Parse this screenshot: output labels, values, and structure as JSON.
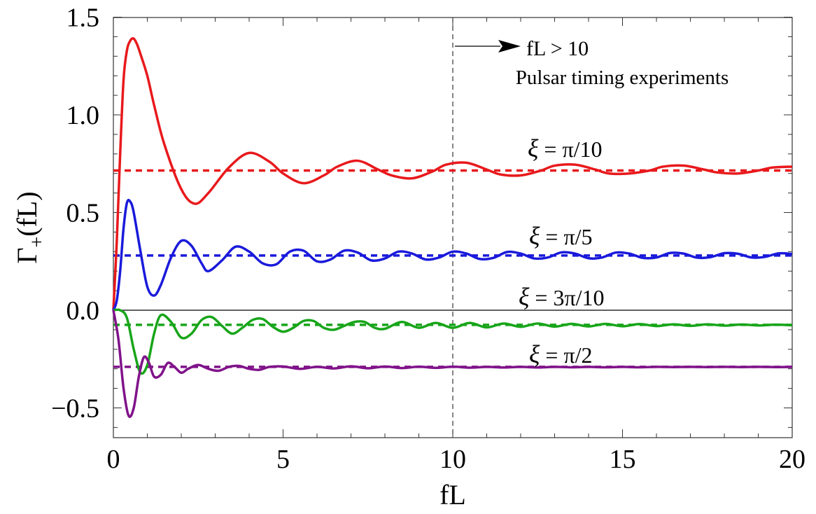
{
  "chart_data": {
    "type": "line",
    "xlabel": "fL",
    "ylabel_main": "Γ",
    "ylabel_sub": "+",
    "ylabel_rest": "(fL)",
    "xlim": [
      0,
      20
    ],
    "ylim": [
      -0.65,
      1.5
    ],
    "xticks": [
      "0",
      "5",
      "10",
      "15",
      "20"
    ],
    "xtick_values": [
      0,
      5,
      10,
      15,
      20
    ],
    "yticks": [
      "1.5",
      "1.0",
      "0.5",
      "0.0",
      "−0.5"
    ],
    "ytick_values": [
      1.5,
      1.0,
      0.5,
      0.0,
      -0.5
    ],
    "vline_x": 10,
    "annotation": {
      "arrow_text": "fL > 10",
      "subtext": "Pulsar timing experiments"
    },
    "series": [
      {
        "name": "ξ = π/10",
        "color": "#e8191c",
        "asymptote": 0.715,
        "x": [
          0,
          0.1,
          0.2,
          0.3,
          0.4,
          0.5,
          0.6,
          0.7,
          0.8,
          1.0,
          1.2,
          1.5,
          2.0,
          2.4,
          2.8,
          3.4,
          4.0,
          4.6,
          5.0,
          5.6,
          6.2,
          6.6,
          7.2,
          7.8,
          8.2,
          8.8,
          9.4,
          9.8,
          10.4,
          11.0,
          11.4,
          12.0,
          12.6,
          13.0,
          13.6,
          14.2,
          14.6,
          15.2,
          15.8,
          16.2,
          16.8,
          17.4,
          17.8,
          18.4,
          19.0,
          19.4,
          20.0
        ],
        "y": [
          0,
          0.35,
          0.8,
          1.18,
          1.33,
          1.38,
          1.39,
          1.36,
          1.31,
          1.2,
          1.05,
          0.85,
          0.62,
          0.545,
          0.6,
          0.73,
          0.805,
          0.76,
          0.7,
          0.65,
          0.69,
          0.735,
          0.765,
          0.72,
          0.69,
          0.675,
          0.71,
          0.745,
          0.755,
          0.72,
          0.695,
          0.69,
          0.715,
          0.74,
          0.745,
          0.72,
          0.7,
          0.7,
          0.715,
          0.735,
          0.74,
          0.72,
          0.705,
          0.7,
          0.715,
          0.73,
          0.735
        ]
      },
      {
        "name": "ξ = π/5",
        "color": "#1a1adb",
        "asymptote": 0.28,
        "x": [
          0,
          0.1,
          0.2,
          0.3,
          0.4,
          0.5,
          0.6,
          0.8,
          1.0,
          1.2,
          1.4,
          1.7,
          2.0,
          2.3,
          2.6,
          2.8,
          3.2,
          3.6,
          4.0,
          4.4,
          4.8,
          5.2,
          5.6,
          6.0,
          6.4,
          6.8,
          7.2,
          7.6,
          8.0,
          8.4,
          8.8,
          9.2,
          9.6,
          10.0,
          10.4,
          10.8,
          11.2,
          11.6,
          12.0,
          12.4,
          12.8,
          13.2,
          13.6,
          14.0,
          14.4,
          14.8,
          15.2,
          15.6,
          16.0,
          16.4,
          16.8,
          17.2,
          17.6,
          18.0,
          18.4,
          18.8,
          19.2,
          19.6,
          20.0
        ],
        "y": [
          0,
          0.05,
          0.2,
          0.42,
          0.55,
          0.555,
          0.5,
          0.3,
          0.12,
          0.075,
          0.13,
          0.27,
          0.355,
          0.33,
          0.24,
          0.2,
          0.255,
          0.325,
          0.3,
          0.24,
          0.235,
          0.3,
          0.305,
          0.25,
          0.26,
          0.305,
          0.295,
          0.255,
          0.265,
          0.3,
          0.29,
          0.26,
          0.27,
          0.3,
          0.29,
          0.262,
          0.268,
          0.298,
          0.29,
          0.265,
          0.27,
          0.296,
          0.29,
          0.266,
          0.27,
          0.295,
          0.29,
          0.268,
          0.27,
          0.293,
          0.29,
          0.269,
          0.272,
          0.292,
          0.289,
          0.27,
          0.273,
          0.291,
          0.288
        ]
      },
      {
        "name": "ξ = 3π/10",
        "color": "#18a51a",
        "asymptote": -0.075,
        "x": [
          0,
          0.2,
          0.4,
          0.6,
          0.8,
          1.0,
          1.2,
          1.4,
          1.7,
          2.0,
          2.3,
          2.6,
          2.9,
          3.2,
          3.5,
          3.8,
          4.1,
          4.4,
          4.7,
          5.0,
          5.3,
          5.6,
          5.9,
          6.2,
          6.5,
          6.8,
          7.1,
          7.4,
          7.7,
          8.0,
          8.5,
          9.0,
          9.5,
          10.0,
          10.5,
          11.0,
          11.5,
          12.0,
          12.5,
          13.0,
          13.5,
          14.0,
          14.5,
          15.0,
          15.5,
          16.0,
          16.5,
          17.0,
          17.5,
          18.0,
          18.5,
          19.0,
          19.5,
          20.0
        ],
        "y": [
          0,
          0.0,
          -0.04,
          -0.2,
          -0.32,
          -0.28,
          -0.12,
          -0.025,
          -0.06,
          -0.14,
          -0.12,
          -0.05,
          -0.035,
          -0.08,
          -0.12,
          -0.09,
          -0.05,
          -0.045,
          -0.085,
          -0.11,
          -0.09,
          -0.055,
          -0.055,
          -0.09,
          -0.1,
          -0.08,
          -0.06,
          -0.06,
          -0.09,
          -0.095,
          -0.06,
          -0.09,
          -0.065,
          -0.09,
          -0.065,
          -0.088,
          -0.068,
          -0.085,
          -0.068,
          -0.084,
          -0.07,
          -0.083,
          -0.07,
          -0.082,
          -0.071,
          -0.081,
          -0.072,
          -0.08,
          -0.072,
          -0.079,
          -0.073,
          -0.078,
          -0.074,
          -0.077
        ]
      },
      {
        "name": "ξ = π/2",
        "color": "#80138a",
        "asymptote": -0.29,
        "x": [
          0,
          0.15,
          0.3,
          0.45,
          0.6,
          0.75,
          0.9,
          1.05,
          1.2,
          1.4,
          1.6,
          1.8,
          2.0,
          2.2,
          2.5,
          2.8,
          3.1,
          3.4,
          3.7,
          4.0,
          4.3,
          4.6,
          5.0,
          5.5,
          6.0,
          6.5,
          7.0,
          7.5,
          8.0,
          8.5,
          9.0,
          9.5,
          10.0,
          10.5,
          11.0,
          11.5,
          12.0,
          12.5,
          13.0,
          13.5,
          14.0,
          14.5,
          15.0,
          15.5,
          16.0,
          16.5,
          17.0,
          17.5,
          18.0,
          18.5,
          19.0,
          19.5,
          20.0
        ],
        "y": [
          0,
          -0.15,
          -0.4,
          -0.54,
          -0.5,
          -0.34,
          -0.24,
          -0.27,
          -0.34,
          -0.33,
          -0.27,
          -0.29,
          -0.32,
          -0.3,
          -0.28,
          -0.3,
          -0.31,
          -0.29,
          -0.285,
          -0.3,
          -0.305,
          -0.29,
          -0.288,
          -0.3,
          -0.29,
          -0.298,
          -0.287,
          -0.297,
          -0.288,
          -0.296,
          -0.289,
          -0.295,
          -0.289,
          -0.294,
          -0.29,
          -0.293,
          -0.29,
          -0.293,
          -0.29,
          -0.292,
          -0.29,
          -0.292,
          -0.29,
          -0.292,
          -0.29,
          -0.291,
          -0.29,
          -0.291,
          -0.29,
          -0.291,
          -0.29,
          -0.291,
          -0.29
        ]
      }
    ]
  },
  "labels": {
    "pi10": {
      "xi": "ξ",
      "rest": " = π/10"
    },
    "pi5": {
      "xi": "ξ",
      "rest": " = π/5"
    },
    "threepi10": {
      "xi": "ξ",
      "rest": " = 3π/10"
    },
    "pi2": {
      "xi": "ξ",
      "rest": " = π/2"
    }
  }
}
